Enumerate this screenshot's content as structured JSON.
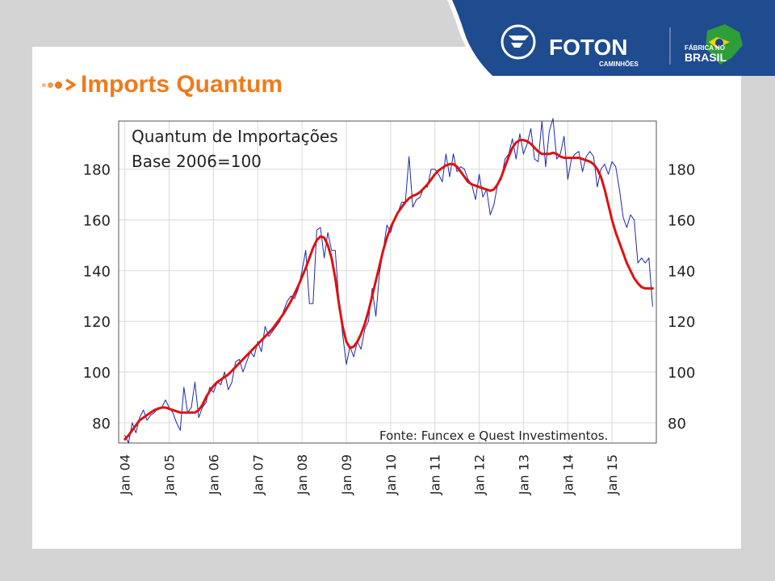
{
  "slide_title": "Imports Quantum",
  "brand": {
    "name": "FOTON",
    "sub": "CAMINHÕES",
    "badge_top": "FÁBRICA NO",
    "badge_bottom": "BRASIL"
  },
  "colors": {
    "accent": "#f07a1a",
    "brand_blue": "#1f4b8f",
    "raw_series": "#1a2aa8",
    "smoothed_series": "#e01010"
  },
  "chart_data": {
    "type": "line",
    "annotation_title": [
      "Quantum de Importações",
      "Base 2006=100"
    ],
    "source_note": "Fonte: Funcex e Quest Investimentos.",
    "x_tick_labels": [
      "Jan 04",
      "Jan 05",
      "Jan 06",
      "Jan 07",
      "Jan 08",
      "Jan 09",
      "Jan 10",
      "Jan 11",
      "Jan 12",
      "Jan 13",
      "Jan 14",
      "Jan 15"
    ],
    "y_ticks_left": [
      80,
      100,
      120,
      140,
      160,
      180
    ],
    "y_ticks_right": [
      80,
      100,
      120,
      140,
      160,
      180
    ],
    "ylim": [
      72,
      199
    ],
    "grid": true,
    "series": [
      {
        "style": "thin-blue",
        "x": [
          2004.0,
          2004.083,
          2004.167,
          2004.25,
          2004.333,
          2004.417,
          2004.5,
          2004.583,
          2004.667,
          2004.75,
          2004.833,
          2004.917,
          2005.0,
          2005.083,
          2005.167,
          2005.25,
          2005.333,
          2005.417,
          2005.5,
          2005.583,
          2005.667,
          2005.75,
          2005.833,
          2005.917,
          2006.0,
          2006.083,
          2006.167,
          2006.25,
          2006.333,
          2006.417,
          2006.5,
          2006.583,
          2006.667,
          2006.75,
          2006.833,
          2006.917,
          2007.0,
          2007.083,
          2007.167,
          2007.25,
          2007.333,
          2007.417,
          2007.5,
          2007.583,
          2007.667,
          2007.75,
          2007.833,
          2007.917,
          2008.0,
          2008.083,
          2008.167,
          2008.25,
          2008.333,
          2008.417,
          2008.5,
          2008.583,
          2008.667,
          2008.75,
          2008.833,
          2008.917,
          2009.0,
          2009.083,
          2009.167,
          2009.25,
          2009.333,
          2009.417,
          2009.5,
          2009.583,
          2009.667,
          2009.75,
          2009.833,
          2009.917,
          2010.0,
          2010.083,
          2010.167,
          2010.25,
          2010.333,
          2010.417,
          2010.5,
          2010.583,
          2010.667,
          2010.75,
          2010.833,
          2010.917,
          2011.0,
          2011.083,
          2011.167,
          2011.25,
          2011.333,
          2011.417,
          2011.5,
          2011.583,
          2011.667,
          2011.75,
          2011.833,
          2011.917,
          2012.0,
          2012.083,
          2012.167,
          2012.25,
          2012.333,
          2012.417,
          2012.5,
          2012.583,
          2012.667,
          2012.75,
          2012.833,
          2012.917,
          2013.0,
          2013.083,
          2013.167,
          2013.25,
          2013.333,
          2013.417,
          2013.5,
          2013.583,
          2013.667,
          2013.75,
          2013.833,
          2013.917,
          2014.0,
          2014.083,
          2014.167,
          2014.25,
          2014.333,
          2014.417,
          2014.5,
          2014.583,
          2014.667,
          2014.75,
          2014.833,
          2014.917,
          2015.0,
          2015.083,
          2015.167,
          2015.25,
          2015.333,
          2015.417,
          2015.5,
          2015.583,
          2015.667,
          2015.75,
          2015.833,
          2015.917
        ],
        "values": [
          75,
          72,
          80,
          76,
          82,
          85,
          81,
          83,
          84,
          86,
          86,
          89,
          86,
          84,
          80,
          77,
          94,
          84,
          86,
          96,
          82,
          86,
          88,
          94,
          92,
          96,
          95,
          100,
          93,
          96,
          104,
          105,
          100,
          104,
          108,
          106,
          112,
          108,
          118,
          114,
          116,
          118,
          120,
          124,
          128,
          130,
          129,
          133,
          140,
          148,
          127,
          127,
          156,
          157,
          145,
          155,
          148,
          148,
          128,
          115,
          103,
          110,
          106,
          112,
          109,
          117,
          120,
          133,
          122,
          139,
          148,
          158,
          155,
          160,
          163,
          167,
          167,
          185,
          165,
          168,
          169,
          173,
          173,
          180,
          180,
          178,
          175,
          186,
          177,
          186,
          179,
          181,
          180,
          176,
          174,
          168,
          178,
          169,
          172,
          162,
          166,
          174,
          176,
          184,
          186,
          192,
          184,
          194,
          186,
          190,
          196,
          184,
          183,
          199,
          181,
          195,
          200,
          184,
          186,
          193,
          176,
          184,
          186,
          187,
          179,
          185,
          187,
          185,
          173,
          180,
          182,
          178,
          183,
          181,
          172,
          161,
          157,
          162,
          160,
          143,
          145,
          143,
          145,
          126
        ]
      },
      {
        "style": "thick-red",
        "x": [
          2004.0,
          2004.083,
          2004.167,
          2004.25,
          2004.333,
          2004.417,
          2004.5,
          2004.583,
          2004.667,
          2004.75,
          2004.833,
          2004.917,
          2005.0,
          2005.083,
          2005.167,
          2005.25,
          2005.333,
          2005.417,
          2005.5,
          2005.583,
          2005.667,
          2005.75,
          2005.833,
          2005.917,
          2006.0,
          2006.083,
          2006.167,
          2006.25,
          2006.333,
          2006.417,
          2006.5,
          2006.583,
          2006.667,
          2006.75,
          2006.833,
          2006.917,
          2007.0,
          2007.083,
          2007.167,
          2007.25,
          2007.333,
          2007.417,
          2007.5,
          2007.583,
          2007.667,
          2007.75,
          2007.833,
          2007.917,
          2008.0,
          2008.083,
          2008.167,
          2008.25,
          2008.333,
          2008.417,
          2008.5,
          2008.583,
          2008.667,
          2008.75,
          2008.833,
          2008.917,
          2009.0,
          2009.083,
          2009.167,
          2009.25,
          2009.333,
          2009.417,
          2009.5,
          2009.583,
          2009.667,
          2009.75,
          2009.833,
          2009.917,
          2010.0,
          2010.083,
          2010.167,
          2010.25,
          2010.333,
          2010.417,
          2010.5,
          2010.583,
          2010.667,
          2010.75,
          2010.833,
          2010.917,
          2011.0,
          2011.083,
          2011.167,
          2011.25,
          2011.333,
          2011.417,
          2011.5,
          2011.583,
          2011.667,
          2011.75,
          2011.833,
          2011.917,
          2012.0,
          2012.083,
          2012.167,
          2012.25,
          2012.333,
          2012.417,
          2012.5,
          2012.583,
          2012.667,
          2012.75,
          2012.833,
          2012.917,
          2013.0,
          2013.083,
          2013.167,
          2013.25,
          2013.333,
          2013.417,
          2013.5,
          2013.583,
          2013.667,
          2013.75,
          2013.833,
          2013.917,
          2014.0,
          2014.083,
          2014.167,
          2014.25,
          2014.333,
          2014.417,
          2014.5,
          2014.583,
          2014.667,
          2014.75,
          2014.833,
          2014.917,
          2015.0,
          2015.083,
          2015.167,
          2015.25,
          2015.333,
          2015.417,
          2015.5,
          2015.583,
          2015.667,
          2015.75,
          2015.833,
          2015.917
        ],
        "values": [
          73.5,
          75,
          77,
          79,
          81,
          82,
          83,
          84,
          85,
          85.5,
          86,
          86,
          85.5,
          85,
          84.5,
          84,
          84,
          84,
          84,
          84,
          85,
          87,
          90,
          92.5,
          94.5,
          96,
          97,
          98,
          99,
          100.5,
          102,
          103.5,
          105,
          106.5,
          108,
          109.5,
          111,
          112.5,
          114,
          115.5,
          117,
          119,
          121,
          123,
          125.5,
          128,
          131,
          134,
          137.5,
          141,
          145,
          149,
          152,
          153.5,
          153,
          150,
          145,
          137,
          127,
          118,
          112,
          109.5,
          110,
          112,
          115,
          119,
          124,
          130,
          136,
          142,
          148,
          153,
          157,
          160,
          163,
          165,
          167,
          168.5,
          169.5,
          170,
          171,
          172.5,
          174,
          176,
          178,
          179.5,
          180.5,
          181.5,
          182,
          182,
          181,
          179,
          177,
          175,
          174,
          173.5,
          173,
          172.5,
          172,
          171.5,
          172,
          174,
          177,
          181,
          185,
          188.5,
          190.5,
          191.5,
          191.5,
          191,
          190,
          188.5,
          187,
          186,
          186,
          186,
          186.5,
          186,
          185,
          184.5,
          184.5,
          184.5,
          184.5,
          184.5,
          184,
          183.5,
          183,
          182,
          180,
          177,
          172,
          166,
          160,
          155,
          151,
          147,
          143,
          140,
          137,
          135,
          133.5,
          133,
          133,
          133
        ]
      }
    ]
  }
}
